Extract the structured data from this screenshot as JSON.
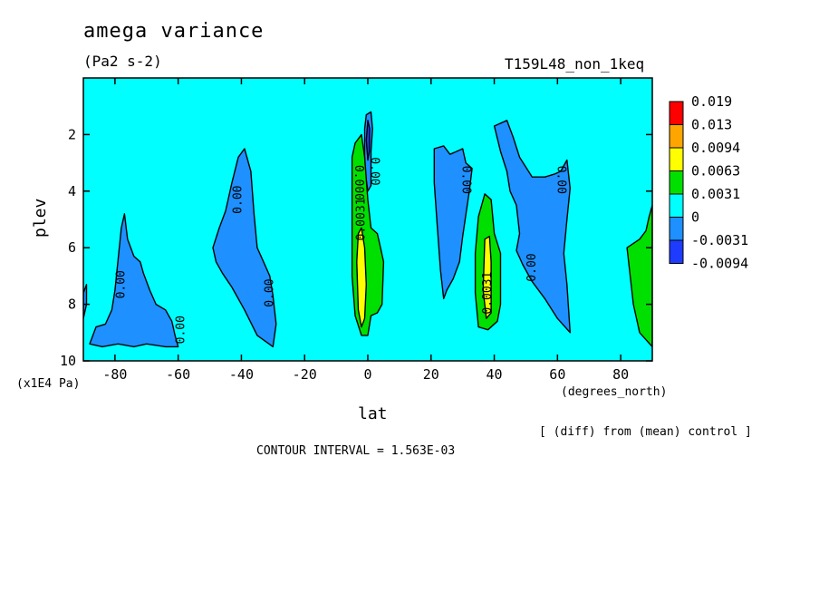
{
  "title": "amega variance",
  "units": "(Pa2 s-2)",
  "run_label": "T159L48_non_1keq",
  "note": "[ (diff) from (mean) control ]",
  "contour_interval_text": "CONTOUR INTERVAL = 1.563E-03",
  "colors": {
    "background": "#00ffff",
    "neg_1": "#1e90ff",
    "neg_2": "#1e3cff",
    "pos_1": "#00e000",
    "pos_2": "#ffff00",
    "pos_3": "#ffa500",
    "pos_4": "#ff0000"
  },
  "chart_data": {
    "type": "heatmap",
    "subtype": "filled contour",
    "title": "amega variance",
    "xlabel": "lat",
    "xunit": "(degrees_north)",
    "ylabel": "plev",
    "yunit": "(x1E4 Pa)",
    "xlim": [
      -90,
      90
    ],
    "ylim": [
      10,
      0
    ],
    "x_ticks": [
      -80,
      -60,
      -40,
      -20,
      0,
      20,
      40,
      60,
      80
    ],
    "x_tick_labels": [
      "-80",
      "-60",
      "-40",
      "-20",
      "0",
      "20",
      "40",
      "60",
      "80"
    ],
    "y_ticks": [
      2,
      4,
      6,
      8,
      10
    ],
    "y_tick_labels": [
      "2",
      "4",
      "6",
      "8",
      "10"
    ],
    "contour_interval": 0.001563,
    "colorbar": {
      "levels": [
        "0.019",
        "0.013",
        "0.0094",
        "0.0063",
        "0.0031",
        "0",
        "-0.0031",
        "-0.0094"
      ],
      "colors": [
        "#ff0000",
        "#ffa500",
        "#ffff00",
        "#00e000",
        "#00ffff",
        "#1e90ff",
        "#1e3cff"
      ]
    },
    "contour_labels": [
      {
        "text": "0.00",
        "lat": -78,
        "plev": 7.3,
        "rot": -90
      },
      {
        "text": "0.00",
        "lat": -59,
        "plev": 8.9,
        "rot": -90
      },
      {
        "text": "0.00",
        "lat": -41,
        "plev": 4.3,
        "rot": -90
      },
      {
        "text": "0.00",
        "lat": -31,
        "plev": 7.6,
        "rot": -90
      },
      {
        "text": "0.000",
        "lat": -3,
        "plev": 3.7,
        "rot": 90
      },
      {
        "text": "0.0031",
        "lat": -2,
        "plev": 5.0,
        "rot": -90
      },
      {
        "text": "0.00",
        "lat": 2,
        "plev": 3.3,
        "rot": 90
      },
      {
        "text": "0.00",
        "lat": 31,
        "plev": 3.6,
        "rot": 90
      },
      {
        "text": "0.0031",
        "lat": 38,
        "plev": 7.6,
        "rot": -90
      },
      {
        "text": "0.00",
        "lat": 52,
        "plev": 6.7,
        "rot": -90
      },
      {
        "text": "0.00",
        "lat": 61,
        "plev": 3.6,
        "rot": 90
      }
    ],
    "regions": [
      {
        "level": "neg_1",
        "poly": [
          [
            -88,
            9.4
          ],
          [
            -86,
            8.8
          ],
          [
            -83,
            8.7
          ],
          [
            -81,
            8.2
          ],
          [
            -80,
            7.5
          ],
          [
            -79,
            6.4
          ],
          [
            -78,
            5.3
          ],
          [
            -77,
            4.8
          ],
          [
            -76,
            5.7
          ],
          [
            -74,
            6.3
          ],
          [
            -72,
            6.5
          ],
          [
            -71,
            6.9
          ],
          [
            -69,
            7.5
          ],
          [
            -67,
            8.0
          ],
          [
            -64,
            8.2
          ],
          [
            -62,
            8.6
          ],
          [
            -61,
            9.1
          ],
          [
            -60,
            9.5
          ],
          [
            -64,
            9.5
          ],
          [
            -70,
            9.4
          ],
          [
            -74,
            9.5
          ],
          [
            -79,
            9.4
          ],
          [
            -84,
            9.5
          ]
        ]
      },
      {
        "level": "neg_1",
        "poly": [
          [
            -49,
            6.0
          ],
          [
            -47,
            5.3
          ],
          [
            -45,
            4.7
          ],
          [
            -43,
            3.7
          ],
          [
            -41,
            2.8
          ],
          [
            -39,
            2.5
          ],
          [
            -37,
            3.3
          ],
          [
            -36,
            4.8
          ],
          [
            -35,
            6.0
          ],
          [
            -33,
            6.5
          ],
          [
            -31,
            7.0
          ],
          [
            -30,
            7.7
          ],
          [
            -29,
            8.7
          ],
          [
            -30,
            9.5
          ],
          [
            -35,
            9.1
          ],
          [
            -39,
            8.2
          ],
          [
            -43,
            7.4
          ],
          [
            -46,
            6.9
          ],
          [
            -48,
            6.5
          ]
        ]
      },
      {
        "level": "neg_1",
        "poly": [
          [
            -1,
            3.2
          ],
          [
            -1,
            1.8
          ],
          [
            -0.5,
            1.3
          ],
          [
            1,
            1.2
          ],
          [
            1.5,
            1.8
          ],
          [
            1,
            2.6
          ],
          [
            1,
            3.8
          ],
          [
            0,
            4.0
          ]
        ]
      },
      {
        "level": "neg_2",
        "poly": [
          [
            -0.5,
            2.2
          ],
          [
            0,
            1.5
          ],
          [
            0.6,
            1.8
          ],
          [
            0.5,
            2.6
          ],
          [
            0,
            2.9
          ]
        ]
      },
      {
        "level": "pos_1",
        "poly": [
          [
            -5,
            4.0
          ],
          [
            -5,
            2.8
          ],
          [
            -4,
            2.3
          ],
          [
            -2,
            2.0
          ],
          [
            -1,
            2.8
          ],
          [
            0,
            4.3
          ],
          [
            1,
            5.3
          ],
          [
            3,
            5.5
          ],
          [
            4,
            6.0
          ],
          [
            5,
            6.5
          ],
          [
            4.5,
            8.0
          ],
          [
            3,
            8.3
          ],
          [
            1,
            8.4
          ],
          [
            0,
            9.1
          ],
          [
            -2,
            9.1
          ],
          [
            -4,
            8.4
          ],
          [
            -5,
            7.0
          ]
        ]
      },
      {
        "level": "pos_2",
        "poly": [
          [
            -3.5,
            6.5
          ],
          [
            -3,
            5.5
          ],
          [
            -2,
            5.3
          ],
          [
            -1,
            6.0
          ],
          [
            -0.5,
            7.3
          ],
          [
            -1,
            8.5
          ],
          [
            -2,
            8.8
          ],
          [
            -3,
            8.2
          ]
        ]
      },
      {
        "level": "neg_1",
        "poly": [
          [
            21,
            3.7
          ],
          [
            21,
            2.5
          ],
          [
            24,
            2.4
          ],
          [
            26,
            2.7
          ],
          [
            28,
            2.6
          ],
          [
            30,
            2.5
          ],
          [
            31,
            3.0
          ],
          [
            33,
            3.2
          ],
          [
            32,
            4.1
          ],
          [
            30,
            5.6
          ],
          [
            29,
            6.5
          ],
          [
            27,
            7.1
          ],
          [
            25,
            7.5
          ],
          [
            24,
            7.8
          ],
          [
            23,
            6.8
          ],
          [
            22,
            5.3
          ]
        ]
      },
      {
        "level": "neg_1",
        "poly": [
          [
            40,
            1.7
          ],
          [
            44,
            1.5
          ],
          [
            46,
            2.1
          ],
          [
            48,
            2.8
          ],
          [
            52,
            3.5
          ],
          [
            56,
            3.5
          ],
          [
            59,
            3.4
          ],
          [
            61,
            3.3
          ],
          [
            63,
            2.9
          ],
          [
            64,
            3.9
          ],
          [
            63,
            5.0
          ],
          [
            62,
            6.2
          ],
          [
            63,
            7.3
          ],
          [
            64,
            9.0
          ],
          [
            60,
            8.5
          ],
          [
            56,
            7.8
          ],
          [
            52,
            7.2
          ],
          [
            49,
            6.6
          ],
          [
            47,
            6.1
          ],
          [
            48,
            5.5
          ],
          [
            47,
            4.5
          ],
          [
            45,
            4.0
          ],
          [
            44,
            3.3
          ],
          [
            42,
            2.6
          ]
        ]
      },
      {
        "level": "pos_1",
        "poly": [
          [
            35,
            4.9
          ],
          [
            37,
            4.1
          ],
          [
            39,
            4.3
          ],
          [
            40,
            5.5
          ],
          [
            42,
            6.2
          ],
          [
            42,
            8.0
          ],
          [
            41,
            8.6
          ],
          [
            38,
            8.9
          ],
          [
            35,
            8.8
          ],
          [
            34,
            7.6
          ],
          [
            34,
            6.2
          ]
        ]
      },
      {
        "level": "pos_2",
        "poly": [
          [
            37,
            5.7
          ],
          [
            38.5,
            5.6
          ],
          [
            39,
            6.5
          ],
          [
            39,
            8.3
          ],
          [
            37.5,
            8.5
          ],
          [
            36.5,
            7.5
          ]
        ]
      },
      {
        "level": "pos_1",
        "poly": [
          [
            82,
            6.0
          ],
          [
            86,
            5.7
          ],
          [
            88,
            5.4
          ],
          [
            89,
            4.9
          ],
          [
            90,
            4.5
          ],
          [
            90,
            9.5
          ],
          [
            86,
            9.0
          ],
          [
            84,
            8.0
          ],
          [
            83,
            7.0
          ]
        ]
      },
      {
        "level": "neg_1",
        "poly": [
          [
            -90,
            7.6
          ],
          [
            -89,
            7.3
          ],
          [
            -89,
            8.0
          ],
          [
            -90,
            8.5
          ]
        ]
      }
    ]
  }
}
